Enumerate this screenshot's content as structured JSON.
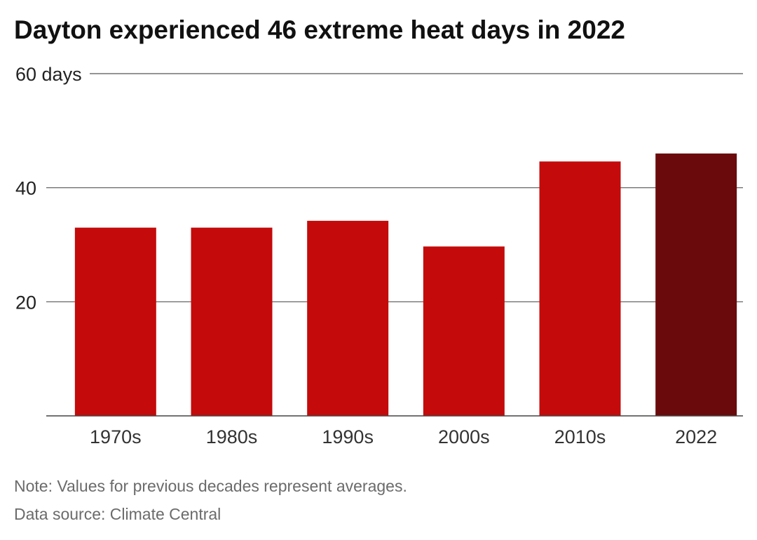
{
  "title": "Dayton experienced 46 extreme heat days in 2022",
  "note": "Note: Values for previous decades represent averages.",
  "source": "Data source: Climate Central",
  "colors": {
    "bar": "#c40a0a",
    "highlight": "#6b0a0c",
    "grid": "#555555"
  },
  "chart_data": {
    "type": "bar",
    "title": "Dayton experienced 46 extreme heat days in 2022",
    "xlabel": "",
    "ylabel": "",
    "categories": [
      "1970s",
      "1980s",
      "1990s",
      "2000s",
      "2010s",
      "2022"
    ],
    "values": [
      33,
      33,
      34.2,
      29.7,
      44.6,
      46
    ],
    "highlight_category": "2022",
    "ylim": [
      0,
      60
    ],
    "y_ticks": [
      {
        "value": 20,
        "label": "20"
      },
      {
        "value": 40,
        "label": "40"
      },
      {
        "value": 60,
        "label": "60 days"
      }
    ],
    "grid": true,
    "legend": "none"
  }
}
